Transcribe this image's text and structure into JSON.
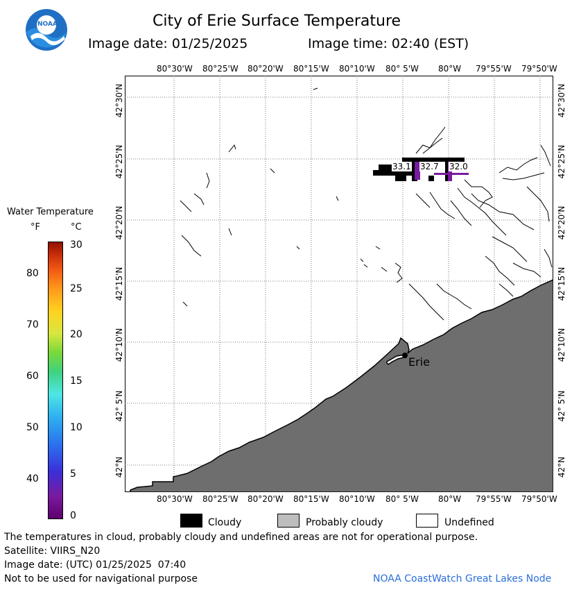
{
  "header": {
    "title": "City of Erie Surface Temperature",
    "image_date_label": "Image date: 01/25/2025",
    "image_time_label": "Image time: 02:40 (EST)",
    "logo_text": "NOAA"
  },
  "map": {
    "lon_ticks": [
      "80°30'W",
      "80°25'W",
      "80°20'W",
      "80°15'W",
      "80°10'W",
      "80° 5'W",
      "80°W",
      "79°55'W",
      "79°50'W"
    ],
    "lat_ticks": [
      "42°30'N",
      "42°25'N",
      "42°20'N",
      "42°15'N",
      "42°10'N",
      "42° 5'N",
      "42°N"
    ],
    "city_label": "Erie",
    "temp_labels": [
      "33.1",
      "32.7",
      "32.0"
    ],
    "colors": {
      "land": "#6e6e6e",
      "cloudy": "#000000",
      "probably_cloudy": "#bdbdbd",
      "undefined": "#ffffff",
      "cold_water": "#7a1a9e"
    }
  },
  "colorbar": {
    "title": "Water Temperature",
    "unit_f": "°F",
    "unit_c": "°C",
    "f_ticks": [
      "80",
      "70",
      "60",
      "50",
      "40"
    ],
    "c_ticks": [
      "30",
      "25",
      "20",
      "15",
      "10",
      "5",
      "0"
    ]
  },
  "legend": {
    "cloudy": "Cloudy",
    "probably_cloudy": "Probably cloudy",
    "undefined": "Undefined"
  },
  "footer": {
    "disclaimer": "The temperatures in cloud, probably cloudy and undefined areas are not for operational purpose.",
    "satellite": "Satellite: VIIRS_N20",
    "image_date_utc": "Image date: (UTC) 01/25/2025  07:40",
    "nav_note": "Not to be used for navigational purpose",
    "credit": "NOAA CoastWatch Great Lakes Node"
  }
}
